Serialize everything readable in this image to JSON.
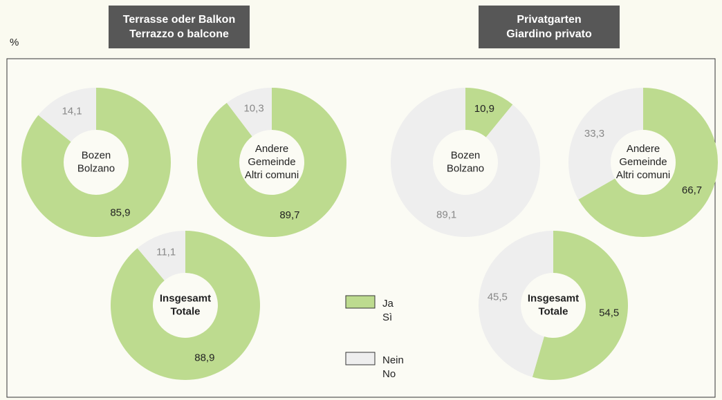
{
  "unit": "%",
  "groups": [
    {
      "title": [
        "Terrasse oder Balkon",
        "Terrazzo o balcone"
      ]
    },
    {
      "title": [
        "Privatgarten",
        "Giardino privato"
      ]
    }
  ],
  "legend": [
    {
      "name": [
        "Ja",
        "Sì"
      ],
      "color": "#bddb8f"
    },
    {
      "name": [
        "Nein",
        "No"
      ],
      "color": "#eeeeee"
    }
  ],
  "chart_data": [
    {
      "type": "donut",
      "title": [
        "Bozen",
        "Bolzano"
      ],
      "values": [
        85.9,
        14.1
      ],
      "value_labels": [
        "85,9",
        "14,1"
      ]
    },
    {
      "type": "donut",
      "title": [
        "Andere",
        "Gemeinde",
        "Altri comuni"
      ],
      "values": [
        89.7,
        10.3
      ],
      "value_labels": [
        "89,7",
        "10,3"
      ]
    },
    {
      "type": "donut",
      "title": [
        "Insgesamt",
        "Totale"
      ],
      "bold": true,
      "values": [
        88.9,
        11.1
      ],
      "value_labels": [
        "88,9",
        "11,1"
      ]
    },
    {
      "type": "donut",
      "title": [
        "Bozen",
        "Bolzano"
      ],
      "values": [
        10.9,
        89.1
      ],
      "value_labels": [
        "10,9",
        "89,1"
      ]
    },
    {
      "type": "donut",
      "title": [
        "Andere",
        "Gemeinde",
        "Altri comuni"
      ],
      "values": [
        66.7,
        33.3
      ],
      "value_labels": [
        "66,7",
        "33,3"
      ]
    },
    {
      "type": "donut",
      "title": [
        "Insgesamt",
        "Totale"
      ],
      "bold": true,
      "values": [
        54.5,
        45.5
      ],
      "value_labels": [
        "54,5",
        "45,5"
      ]
    }
  ]
}
